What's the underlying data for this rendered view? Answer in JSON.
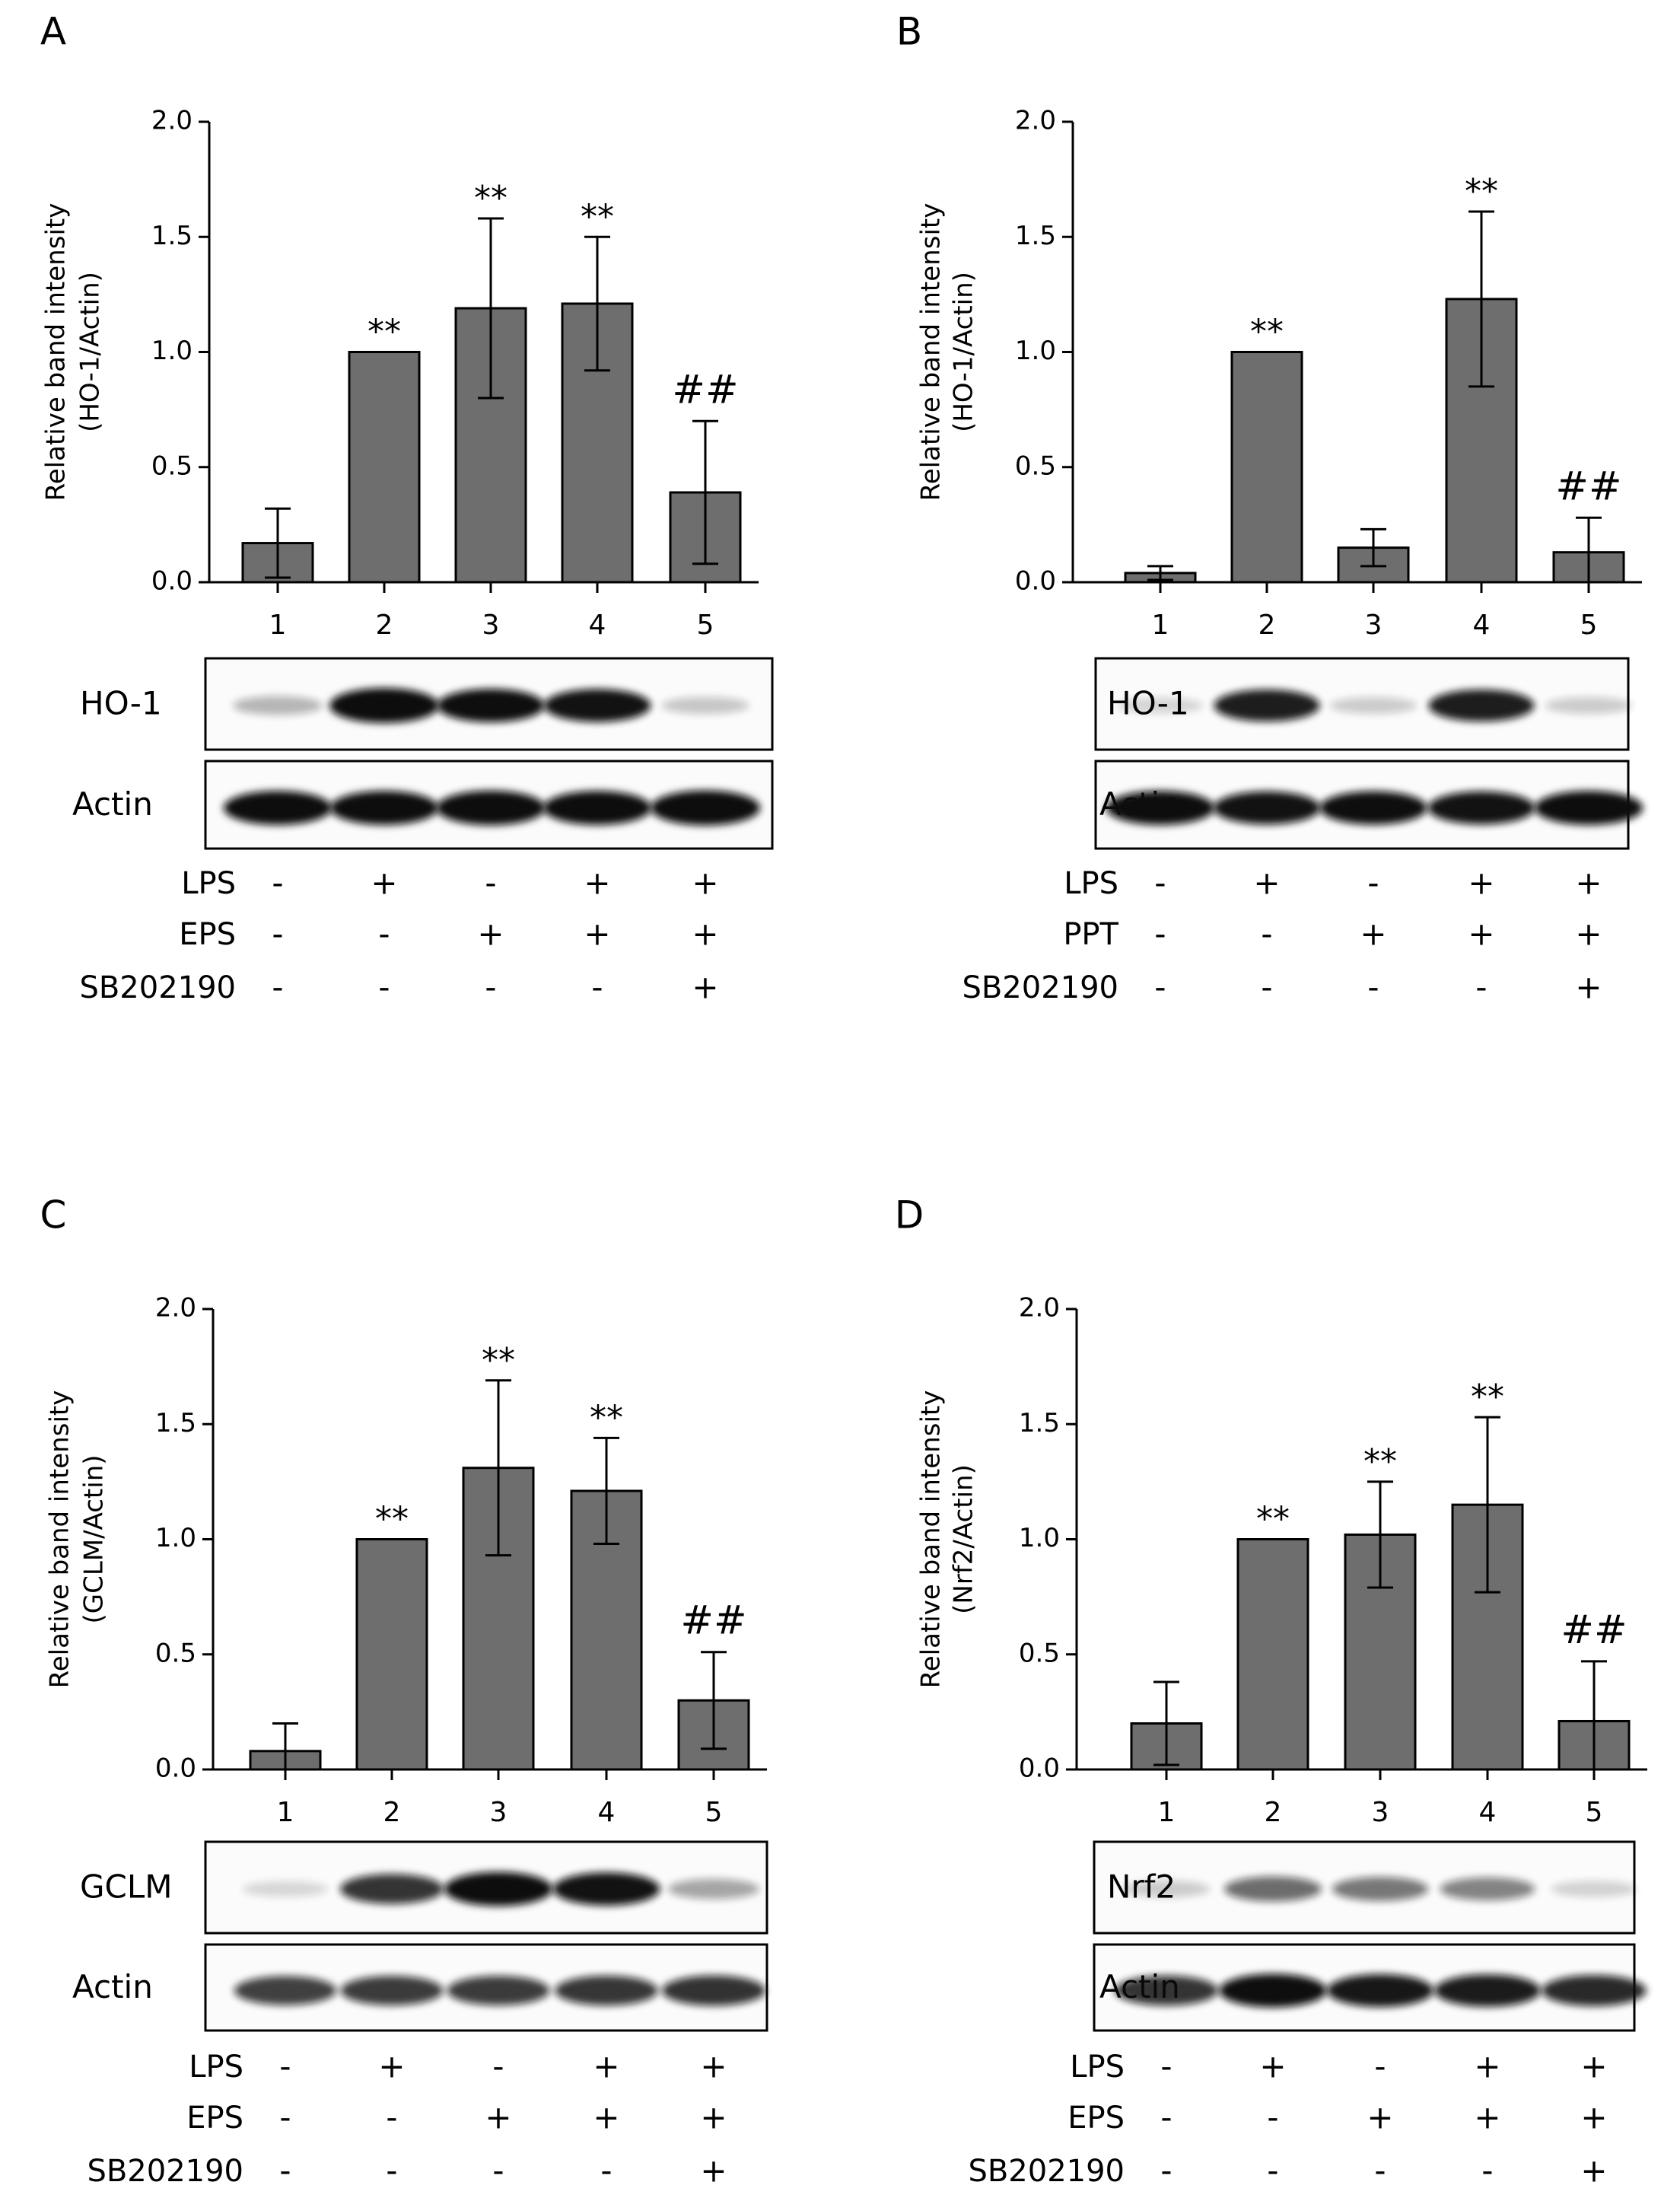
{
  "figure": {
    "colors": {
      "bar_fill": "#6e6e6e",
      "bar_stroke": "#000000",
      "band": "#101010",
      "text": "#000000"
    }
  },
  "chart_data": [
    {
      "panel": "A",
      "type": "bar",
      "title": "",
      "ylabel_line1": "Relative band intensity",
      "ylabel_line2": "(HO-1/Actin)",
      "xlabel": "",
      "ylim": [
        0,
        2.0
      ],
      "yticks": [
        "0.0",
        "0.5",
        "1.0",
        "1.5",
        "2.0"
      ],
      "categories": [
        "1",
        "2",
        "3",
        "4",
        "5"
      ],
      "values": [
        0.17,
        1.0,
        1.19,
        1.21,
        0.39
      ],
      "errors": [
        0.15,
        0,
        0.39,
        0.29,
        0.31
      ],
      "annotations": [
        "",
        "**",
        "**",
        "**",
        "##"
      ],
      "blots": [
        {
          "label": "HO-1",
          "intensity": [
            0.18,
            1.0,
            0.92,
            0.9,
            0.1
          ]
        },
        {
          "label": "Actin",
          "intensity": [
            0.95,
            0.95,
            0.98,
            0.95,
            1.0
          ]
        }
      ],
      "treatments": [
        {
          "name": "LPS",
          "signs": [
            "-",
            "+",
            "-",
            "+",
            "+"
          ]
        },
        {
          "name": "EPS",
          "signs": [
            "-",
            "-",
            "+",
            "+",
            "+"
          ]
        },
        {
          "name": "SB202190",
          "signs": [
            "-",
            "-",
            "-",
            "-",
            "+"
          ]
        }
      ]
    },
    {
      "panel": "B",
      "type": "bar",
      "title": "",
      "ylabel_line1": "Relative band intensity",
      "ylabel_line2": "(HO-1/Actin)",
      "xlabel": "",
      "ylim": [
        0,
        2.0
      ],
      "yticks": [
        "0.0",
        "0.5",
        "1.0",
        "1.5",
        "2.0"
      ],
      "categories": [
        "1",
        "2",
        "3",
        "4",
        "5"
      ],
      "values": [
        0.04,
        1.0,
        0.15,
        1.23,
        0.13
      ],
      "errors": [
        0.03,
        0,
        0.08,
        0.38,
        0.15
      ],
      "annotations": [
        "",
        "**",
        "",
        "**",
        "##"
      ],
      "blots": [
        {
          "label": "HO-1",
          "intensity": [
            0.04,
            0.85,
            0.08,
            0.85,
            0.08
          ]
        },
        {
          "label": "Actin",
          "intensity": [
            0.95,
            0.9,
            0.92,
            0.9,
            0.95
          ]
        }
      ],
      "treatments": [
        {
          "name": "LPS",
          "signs": [
            "-",
            "+",
            "-",
            "+",
            "+"
          ]
        },
        {
          "name": "PPT",
          "signs": [
            "-",
            "-",
            "+",
            "+",
            "+"
          ]
        },
        {
          "name": "SB202190",
          "signs": [
            "-",
            "-",
            "-",
            "-",
            "+"
          ]
        }
      ]
    },
    {
      "panel": "C",
      "type": "bar",
      "title": "",
      "ylabel_line1": "Relative band intensity",
      "ylabel_line2": "(GCLM/Actin)",
      "xlabel": "",
      "ylim": [
        0,
        2.0
      ],
      "yticks": [
        "0.0",
        "0.5",
        "1.0",
        "1.5",
        "2.0"
      ],
      "categories": [
        "1",
        "2",
        "3",
        "4",
        "5"
      ],
      "values": [
        0.08,
        1.0,
        1.31,
        1.21,
        0.3
      ],
      "errors": [
        0.12,
        0,
        0.38,
        0.23,
        0.21
      ],
      "annotations": [
        "",
        "**",
        "**",
        "**",
        "##"
      ],
      "blots": [
        {
          "label": "GCLM",
          "intensity": [
            0.03,
            0.75,
            0.95,
            0.9,
            0.25
          ]
        },
        {
          "label": "Actin",
          "intensity": [
            0.7,
            0.72,
            0.72,
            0.74,
            0.76
          ]
        }
      ],
      "treatments": [
        {
          "name": "LPS",
          "signs": [
            "-",
            "+",
            "-",
            "+",
            "+"
          ]
        },
        {
          "name": "EPS",
          "signs": [
            "-",
            "-",
            "+",
            "+",
            "+"
          ]
        },
        {
          "name": "SB202190",
          "signs": [
            "-",
            "-",
            "-",
            "-",
            "+"
          ]
        }
      ]
    },
    {
      "panel": "D",
      "type": "bar",
      "title": "",
      "ylabel_line1": "Relative band intensity",
      "ylabel_line2": "(Nrf2/Actin)",
      "xlabel": "",
      "ylim": [
        0,
        2.0
      ],
      "yticks": [
        "0.0",
        "0.5",
        "1.0",
        "1.5",
        "2.0"
      ],
      "categories": [
        "1",
        "2",
        "3",
        "4",
        "5"
      ],
      "values": [
        0.2,
        1.0,
        1.02,
        1.15,
        0.21
      ],
      "errors": [
        0.18,
        0,
        0.23,
        0.38,
        0.26
      ],
      "annotations": [
        "",
        "**",
        "**",
        "**",
        "##"
      ],
      "blots": [
        {
          "label": "Nrf2",
          "intensity": [
            0.08,
            0.5,
            0.45,
            0.4,
            0.05
          ]
        },
        {
          "label": "Actin",
          "intensity": [
            0.75,
            0.92,
            0.88,
            0.86,
            0.8
          ]
        }
      ],
      "treatments": [
        {
          "name": "LPS",
          "signs": [
            "-",
            "+",
            "-",
            "+",
            "+"
          ]
        },
        {
          "name": "EPS",
          "signs": [
            "-",
            "-",
            "+",
            "+",
            "+"
          ]
        },
        {
          "name": "SB202190",
          "signs": [
            "-",
            "-",
            "-",
            "-",
            "+"
          ]
        }
      ]
    }
  ]
}
